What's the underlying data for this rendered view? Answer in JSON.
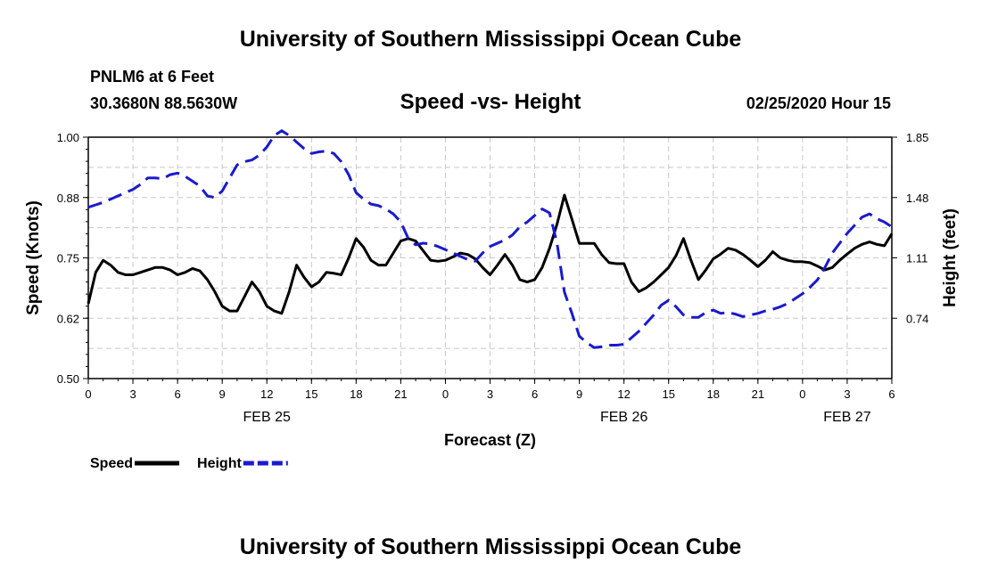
{
  "page": {
    "title_top": "University of Southern Mississippi Ocean Cube",
    "title_bottom": "University of Southern Mississippi Ocean Cube",
    "station": "PNLM6 at 6 Feet",
    "coords": "30.3680N 88.5630W",
    "datetime": "02/25/2020 Hour 15"
  },
  "colors": {
    "speed": "#000000",
    "height": "#1a1acc",
    "grid": "#c8c8c8"
  },
  "chart_data": {
    "type": "line",
    "title": "Speed -vs- Height",
    "xlabel": "Forecast (Z)",
    "ylabel": "Speed (Knots)",
    "y2label": "Height (feet)",
    "xlim": [
      0,
      54
    ],
    "ylim": [
      0.5,
      1.0
    ],
    "y2lim": [
      0.37,
      1.85
    ],
    "x_ticks": [
      0,
      3,
      6,
      9,
      12,
      15,
      18,
      21,
      24,
      27,
      30,
      33,
      36,
      39,
      42,
      45,
      48,
      51,
      54
    ],
    "x_tick_labels": [
      "0",
      "3",
      "6",
      "9",
      "12",
      "15",
      "18",
      "21",
      "0",
      "3",
      "6",
      "9",
      "12",
      "15",
      "18",
      "21",
      "0",
      "3",
      "6"
    ],
    "date_labels": [
      {
        "x": 12,
        "label": "FEB 25"
      },
      {
        "x": 36,
        "label": "FEB 26"
      },
      {
        "x": 51,
        "label": "FEB 27"
      }
    ],
    "y_ticks": [
      "0.50",
      "0.62",
      "0.75",
      "0.88",
      "1.00"
    ],
    "y_tick_values": [
      0.5,
      0.625,
      0.75,
      0.875,
      1.0
    ],
    "y2_ticks": [
      "0.74",
      "1.11",
      "1.48",
      "1.85"
    ],
    "y2_tick_values": [
      0.74,
      1.11,
      1.48,
      1.85
    ],
    "series": [
      {
        "name": "Speed",
        "axis": "left",
        "style": "solid",
        "x": [
          0,
          0.5,
          1,
          1.5,
          2,
          2.5,
          3,
          3.5,
          4,
          4.5,
          5,
          5.5,
          6,
          6.5,
          7,
          7.5,
          8,
          8.5,
          9,
          9.5,
          10,
          10.5,
          11,
          11.5,
          12,
          12.5,
          13,
          13.5,
          14,
          14.5,
          15,
          15.5,
          16,
          16.5,
          17,
          17.5,
          18,
          18.5,
          19,
          19.5,
          20,
          20.5,
          21,
          21.5,
          22,
          22.5,
          23,
          23.5,
          24,
          24.5,
          25,
          25.5,
          26,
          26.5,
          27,
          27.5,
          28,
          28.5,
          29,
          29.5,
          30,
          30.5,
          31,
          31.5,
          32,
          32.5,
          33,
          33.5,
          34,
          34.5,
          35,
          35.5,
          36,
          36.5,
          37,
          37.5,
          38,
          38.5,
          39,
          39.5,
          40,
          40.5,
          41,
          41.5,
          42,
          42.5,
          43,
          43.5,
          44,
          44.5,
          45,
          45.5,
          46,
          46.5,
          47,
          47.5,
          48,
          48.5,
          49,
          49.5,
          50,
          50.5,
          51,
          51.5,
          52,
          52.5,
          53,
          53.5,
          54
        ],
        "values": [
          0.655,
          0.72,
          0.745,
          0.735,
          0.72,
          0.715,
          0.715,
          0.72,
          0.725,
          0.73,
          0.73,
          0.725,
          0.715,
          0.72,
          0.728,
          0.723,
          0.705,
          0.68,
          0.65,
          0.64,
          0.64,
          0.67,
          0.7,
          0.68,
          0.65,
          0.64,
          0.635,
          0.68,
          0.735,
          0.71,
          0.69,
          0.7,
          0.72,
          0.718,
          0.715,
          0.75,
          0.79,
          0.772,
          0.745,
          0.735,
          0.735,
          0.76,
          0.785,
          0.79,
          0.785,
          0.765,
          0.745,
          0.743,
          0.745,
          0.752,
          0.76,
          0.757,
          0.748,
          0.73,
          0.715,
          0.735,
          0.757,
          0.735,
          0.705,
          0.7,
          0.705,
          0.73,
          0.77,
          0.82,
          0.88,
          0.83,
          0.78,
          0.78,
          0.78,
          0.757,
          0.74,
          0.738,
          0.738,
          0.7,
          0.68,
          0.688,
          0.7,
          0.715,
          0.73,
          0.755,
          0.79,
          0.745,
          0.705,
          0.725,
          0.748,
          0.758,
          0.77,
          0.766,
          0.757,
          0.745,
          0.732,
          0.745,
          0.763,
          0.75,
          0.745,
          0.742,
          0.742,
          0.74,
          0.733,
          0.725,
          0.73,
          0.745,
          0.758,
          0.77,
          0.778,
          0.783,
          0.778,
          0.775,
          0.8
        ],
        "color": "#000000"
      },
      {
        "name": "Height",
        "axis": "right",
        "style": "dashed",
        "x": [
          0,
          0.5,
          1,
          1.5,
          2,
          2.5,
          3,
          3.5,
          4,
          4.5,
          5,
          5.5,
          6,
          6.5,
          7,
          7.5,
          8,
          8.5,
          9,
          9.5,
          10,
          10.5,
          11,
          11.5,
          12,
          12.5,
          13,
          13.5,
          14,
          14.5,
          15,
          15.5,
          16,
          16.5,
          17,
          17.5,
          18,
          18.5,
          19,
          19.5,
          20,
          20.5,
          21,
          21.5,
          22,
          22.5,
          23,
          23.5,
          24,
          24.5,
          25,
          25.5,
          26,
          26.5,
          27,
          27.5,
          28,
          28.5,
          29,
          29.5,
          30,
          30.5,
          31,
          31.5,
          32,
          32.5,
          33,
          33.5,
          34,
          34.5,
          35,
          35.5,
          36,
          36.5,
          37,
          37.5,
          38,
          38.5,
          39,
          39.5,
          40,
          40.5,
          41,
          41.5,
          42,
          42.5,
          43,
          43.5,
          44,
          44.5,
          45,
          45.5,
          46,
          46.5,
          47,
          47.5,
          48,
          48.5,
          49,
          49.5,
          50,
          50.5,
          51,
          51.5,
          52,
          52.5,
          53,
          53.5,
          54
        ],
        "values": [
          1.42,
          1.435,
          1.45,
          1.47,
          1.49,
          1.51,
          1.53,
          1.56,
          1.6,
          1.6,
          1.595,
          1.62,
          1.63,
          1.61,
          1.58,
          1.55,
          1.49,
          1.48,
          1.52,
          1.6,
          1.68,
          1.7,
          1.71,
          1.74,
          1.79,
          1.86,
          1.89,
          1.86,
          1.82,
          1.78,
          1.75,
          1.76,
          1.765,
          1.75,
          1.7,
          1.62,
          1.51,
          1.47,
          1.44,
          1.43,
          1.41,
          1.38,
          1.33,
          1.23,
          1.19,
          1.2,
          1.195,
          1.18,
          1.16,
          1.14,
          1.12,
          1.1,
          1.09,
          1.14,
          1.18,
          1.2,
          1.22,
          1.25,
          1.3,
          1.33,
          1.37,
          1.41,
          1.385,
          1.2,
          0.9,
          0.77,
          0.63,
          0.59,
          0.56,
          0.565,
          0.575,
          0.575,
          0.58,
          0.62,
          0.66,
          0.71,
          0.76,
          0.82,
          0.85,
          0.81,
          0.76,
          0.745,
          0.745,
          0.775,
          0.79,
          0.77,
          0.775,
          0.765,
          0.75,
          0.76,
          0.77,
          0.785,
          0.795,
          0.81,
          0.83,
          0.86,
          0.89,
          0.93,
          0.975,
          1.05,
          1.14,
          1.2,
          1.26,
          1.31,
          1.36,
          1.38,
          1.35,
          1.33,
          1.3
        ],
        "color": "#1a1acc"
      }
    ],
    "legend": [
      {
        "label": "Speed",
        "style": "solid",
        "color": "#000000"
      },
      {
        "label": "Height",
        "style": "dashed",
        "color": "#1a1acc"
      }
    ]
  }
}
